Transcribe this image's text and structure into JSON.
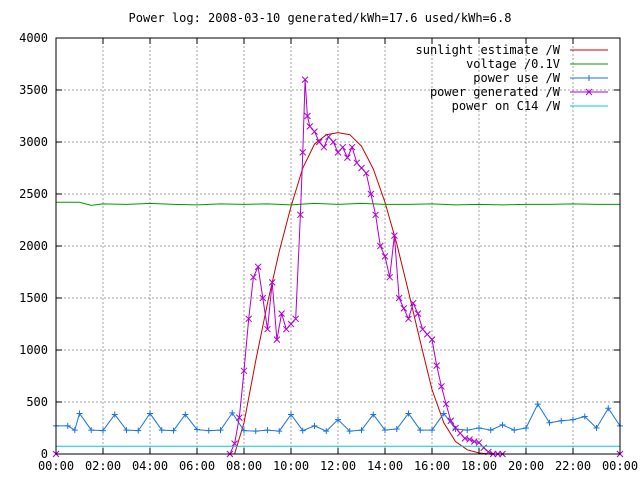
{
  "chart_data": {
    "type": "line",
    "title": "Power log: 2008-03-10 generated/kWh=17.6 used/kWh=6.8",
    "xlabel": "",
    "ylabel": "",
    "xlim": [
      0,
      24
    ],
    "ylim": [
      0,
      4000
    ],
    "x_ticks": [
      "00:00",
      "02:00",
      "04:00",
      "06:00",
      "08:00",
      "10:00",
      "12:00",
      "14:00",
      "16:00",
      "18:00",
      "20:00",
      "22:00",
      "00:00"
    ],
    "y_ticks": [
      "0",
      "500",
      "1000",
      "1500",
      "2000",
      "2500",
      "3000",
      "3500",
      "4000"
    ],
    "y_tick_values": [
      0,
      500,
      1000,
      1500,
      2000,
      2500,
      3000,
      3500,
      4000
    ],
    "grid": true,
    "legend_position": "top-right",
    "series": [
      {
        "name": "sunlight estimate /W",
        "color": "#cc0000",
        "marker": "none",
        "x": [
          0,
          7.6,
          8.0,
          8.5,
          9.0,
          9.5,
          10.0,
          10.5,
          11.0,
          11.5,
          12.0,
          12.5,
          13.0,
          13.5,
          14.0,
          14.5,
          15.0,
          15.5,
          16.0,
          16.5,
          17.0,
          17.5,
          18.0,
          18.5,
          19.0,
          24
        ],
        "y": [
          0,
          0,
          300,
          900,
          1450,
          1950,
          2380,
          2750,
          2980,
          3070,
          3090,
          3070,
          2960,
          2740,
          2420,
          2020,
          1560,
          1080,
          620,
          300,
          120,
          40,
          10,
          0,
          0,
          0
        ]
      },
      {
        "name": "voltage /0.1V",
        "color": "#009900",
        "marker": "none",
        "x": [
          0,
          1.0,
          1.5,
          2.0,
          3.0,
          4.0,
          5.0,
          6.0,
          7.0,
          8.0,
          9.0,
          10.0,
          11.0,
          12.0,
          13.0,
          14.0,
          15.0,
          16.0,
          17.0,
          18.0,
          19.0,
          20.0,
          21.0,
          22.0,
          23.0,
          24
        ],
        "y": [
          2420,
          2420,
          2390,
          2405,
          2400,
          2410,
          2400,
          2395,
          2405,
          2400,
          2405,
          2395,
          2410,
          2400,
          2410,
          2400,
          2400,
          2405,
          2395,
          2400,
          2395,
          2400,
          2400,
          2405,
          2400,
          2400
        ]
      },
      {
        "name": "power use /W",
        "color": "#1a75e0",
        "marker": "plus",
        "x": [
          0,
          0.5,
          0.8,
          1.0,
          1.5,
          2.0,
          2.5,
          3.0,
          3.5,
          4.0,
          4.5,
          5.0,
          5.5,
          6.0,
          6.5,
          7.0,
          7.5,
          8.0,
          8.5,
          9.0,
          9.5,
          10.0,
          10.5,
          11.0,
          11.5,
          12.0,
          12.5,
          13.0,
          13.5,
          14.0,
          14.5,
          15.0,
          15.5,
          16.0,
          16.5,
          17.0,
          17.5,
          18.0,
          18.5,
          19.0,
          19.5,
          20.0,
          20.5,
          21.0,
          21.5,
          22.0,
          22.5,
          23.0,
          23.5,
          24
        ],
        "y": [
          270,
          270,
          230,
          390,
          230,
          225,
          380,
          230,
          225,
          390,
          230,
          225,
          380,
          235,
          225,
          230,
          395,
          225,
          220,
          230,
          220,
          380,
          225,
          270,
          220,
          330,
          220,
          230,
          380,
          230,
          240,
          390,
          230,
          230,
          390,
          240,
          230,
          250,
          230,
          280,
          230,
          250,
          480,
          300,
          320,
          330,
          360,
          250,
          440,
          270
        ]
      },
      {
        "name": "power generated /W",
        "color": "#b000d0",
        "marker": "x",
        "x": [
          0,
          7.4,
          7.6,
          7.8,
          8.0,
          8.2,
          8.4,
          8.6,
          8.8,
          9.0,
          9.2,
          9.4,
          9.6,
          9.8,
          10.0,
          10.2,
          10.4,
          10.5,
          10.6,
          10.7,
          10.8,
          11.0,
          11.2,
          11.4,
          11.6,
          11.8,
          12.0,
          12.2,
          12.4,
          12.6,
          12.8,
          13.0,
          13.2,
          13.4,
          13.6,
          13.8,
          14.0,
          14.2,
          14.4,
          14.6,
          14.8,
          15.0,
          15.2,
          15.4,
          15.6,
          15.8,
          16.0,
          16.2,
          16.4,
          16.6,
          16.8,
          17.0,
          17.2,
          17.4,
          17.6,
          17.8,
          18.0,
          18.2,
          18.4,
          18.6,
          18.8,
          19.0,
          24
        ],
        "y": [
          0,
          0,
          100,
          350,
          800,
          1300,
          1700,
          1800,
          1500,
          1200,
          1650,
          1100,
          1350,
          1200,
          1250,
          1300,
          2300,
          2900,
          3600,
          3250,
          3150,
          3100,
          3000,
          2950,
          3050,
          3000,
          2900,
          2950,
          2850,
          2950,
          2800,
          2750,
          2700,
          2500,
          2300,
          2000,
          1900,
          1700,
          2100,
          1500,
          1400,
          1300,
          1450,
          1350,
          1200,
          1150,
          1100,
          850,
          650,
          480,
          320,
          250,
          200,
          150,
          140,
          120,
          110,
          60,
          20,
          0,
          0,
          0,
          0
        ]
      },
      {
        "name": "power on C14 /W",
        "color": "#00cccc",
        "marker": "none",
        "x": [
          0,
          24
        ],
        "y": [
          75,
          75
        ]
      }
    ]
  }
}
